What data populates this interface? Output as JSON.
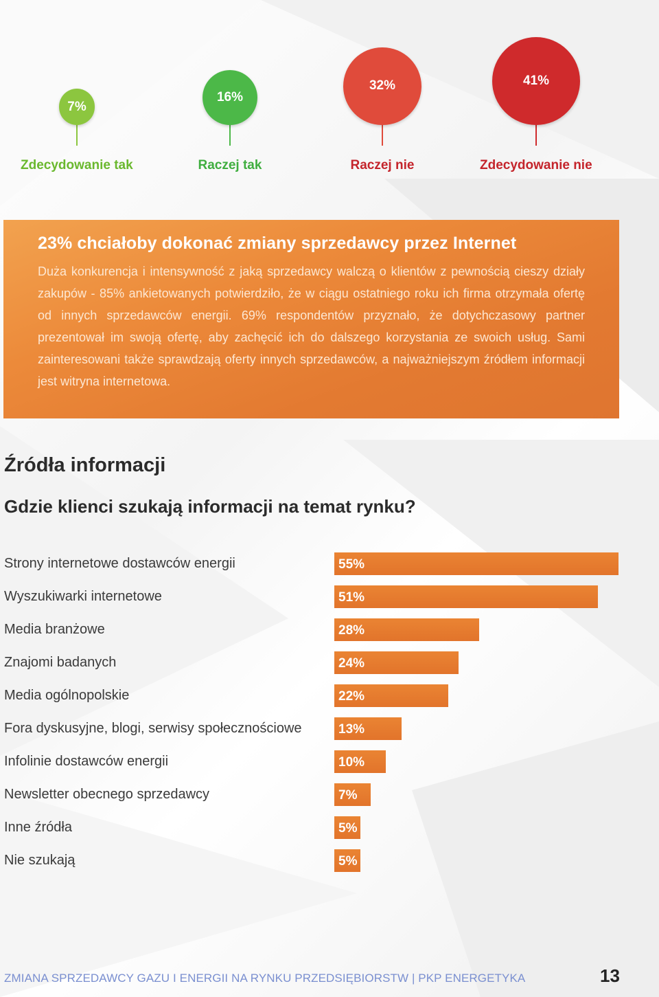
{
  "chart_data": [
    {
      "type": "bubble",
      "categories": [
        "Zdecydowanie tak",
        "Raczej tak",
        "Raczej nie",
        "Zdecydowanie nie"
      ],
      "values": [
        7,
        16,
        32,
        41
      ],
      "value_labels": [
        "7%",
        "16%",
        "32%",
        "41%"
      ],
      "colors": [
        "#8cc63f",
        "#4cb848",
        "#e04b3b",
        "#cf2a2c"
      ],
      "label_colors": [
        "#6ab82e",
        "#3fae3f",
        "#c4242b",
        "#c4242b"
      ]
    },
    {
      "type": "bar",
      "orientation": "horizontal",
      "categories": [
        "Strony internetowe dostawców energii",
        "Wyszukiwarki internetowe",
        "Media branżowe",
        "Znajomi badanych",
        "Media ogólnopolskie",
        "Fora dyskusyjne, blogi, serwisy społecznościowe",
        "Infolinie dostawców energii",
        "Newsletter obecnego sprzedawcy",
        "Inne źródła",
        "Nie szukają"
      ],
      "values": [
        55,
        51,
        28,
        24,
        22,
        13,
        10,
        7,
        5,
        5
      ],
      "value_labels": [
        "55%",
        "51%",
        "28%",
        "24%",
        "22%",
        "13%",
        "10%",
        "7%",
        "5%",
        "5%"
      ],
      "color": "#e57a2e"
    }
  ],
  "info_box": {
    "title": "23% chciałoby dokonać zmiany sprzedawcy przez Internet",
    "body": "Duża konkurencja i intensywność z jaką sprzedawcy walczą o klientów z pewnością cieszy działy zakupów - 85% ankietowanych potwierdziło, że w ciągu ostatniego roku ich firma otrzymała ofertę od innych sprzedawców energii. 69% respondentów przyznało, że dotychczasowy partner prezentował im swoją ofertę, aby zachęcić ich do dalszego korzystania ze swoich usług. Sami zainteresowani także sprawdzają oferty innych sprzedawców, a najważniejszym źródłem informacji jest witryna internetowa."
  },
  "section": {
    "title": "Źródła informacji",
    "subtitle": "Gdzie klienci szukają informacji na temat rynku?"
  },
  "footer": {
    "text": "ZMIANA SPRZEDAWCY GAZU I ENERGII NA RYNKU PRZEDSIĘBIORSTW | PKP ENERGETYKA",
    "page_number": "13"
  }
}
